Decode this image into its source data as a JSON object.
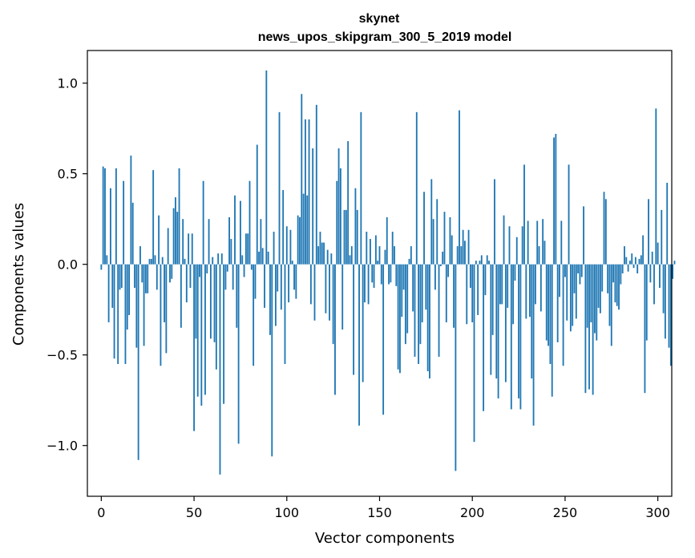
{
  "chart_data": {
    "type": "bar",
    "title": "skynet",
    "subtitle": "news_upos_skipgram_300_5_2019 model",
    "xlabel": "Vector components",
    "ylabel": "Components values",
    "xlim": [
      -7.5,
      307.5
    ],
    "ylim": [
      -1.28,
      1.18
    ],
    "xticks": [
      0,
      50,
      100,
      150,
      200,
      250,
      300
    ],
    "xtick_labels": [
      "0",
      "50",
      "100",
      "150",
      "200",
      "250",
      "300"
    ],
    "yticks": [
      -1.0,
      -0.5,
      0.0,
      0.5,
      1.0
    ],
    "ytick_labels": [
      "−1.0",
      "−0.5",
      "0.0",
      "0.5",
      "1.0"
    ],
    "bar_color": "#1f77b4",
    "grid": false,
    "values": [
      -0.03,
      0.54,
      0.53,
      0.05,
      -0.32,
      0.42,
      -0.24,
      -0.52,
      0.53,
      -0.55,
      -0.14,
      -0.13,
      0.46,
      -0.55,
      -0.36,
      -0.28,
      0.6,
      0.34,
      -0.13,
      -0.46,
      -1.08,
      0.1,
      -0.1,
      -0.45,
      -0.16,
      -0.16,
      0.03,
      0.03,
      0.52,
      0.05,
      -0.14,
      0.27,
      -0.56,
      0.04,
      -0.32,
      -0.49,
      0.2,
      -0.1,
      -0.08,
      0.31,
      0.37,
      0.29,
      0.53,
      -0.35,
      0.25,
      0.03,
      -0.21,
      0.17,
      -0.13,
      0.17,
      -0.92,
      -0.41,
      -0.73,
      -0.07,
      -0.78,
      0.46,
      -0.72,
      -0.05,
      0.25,
      -0.41,
      0.04,
      -0.43,
      -0.58,
      0.06,
      -1.16,
      0.06,
      -0.77,
      -0.14,
      -0.04,
      0.26,
      0.14,
      -0.14,
      0.38,
      -0.35,
      -0.99,
      0.35,
      0.05,
      -0.07,
      0.17,
      0.17,
      0.46,
      -0.03,
      -0.56,
      -0.19,
      0.66,
      0.07,
      0.25,
      0.09,
      -0.24,
      1.07,
      0.07,
      -0.39,
      -1.06,
      0.18,
      -0.34,
      -0.15,
      0.84,
      -0.25,
      0.41,
      -0.55,
      0.21,
      -0.21,
      0.19,
      0.02,
      -0.14,
      -0.19,
      0.27,
      0.26,
      0.94,
      0.39,
      0.8,
      0.38,
      0.8,
      -0.22,
      0.64,
      -0.31,
      0.88,
      0.1,
      0.18,
      0.12,
      0.12,
      -0.27,
      0.08,
      -0.31,
      0.06,
      -0.44,
      -0.72,
      0.46,
      0.64,
      0.53,
      -0.36,
      0.3,
      0.3,
      0.68,
      0.05,
      0.1,
      -0.61,
      0.42,
      0.3,
      -0.89,
      0.84,
      -0.65,
      -0.21,
      0.18,
      -0.22,
      0.14,
      -0.1,
      -0.13,
      0.16,
      0.02,
      0.1,
      -0.11,
      -0.83,
      0.08,
      0.26,
      -0.11,
      -0.1,
      0.18,
      0.1,
      -0.12,
      -0.58,
      -0.6,
      -0.29,
      -0.14,
      -0.44,
      -0.38,
      0.03,
      0.1,
      -0.26,
      -0.51,
      0.84,
      -0.55,
      -0.44,
      -0.32,
      0.4,
      -0.25,
      -0.59,
      -0.63,
      0.47,
      0.25,
      -0.14,
      0.36,
      -0.51,
      -0.01,
      0.07,
      0.29,
      -0.32,
      -0.07,
      0.26,
      0.16,
      -0.35,
      -1.14,
      0.1,
      0.85,
      0.1,
      0.19,
      0.13,
      -0.33,
      0.19,
      -0.13,
      -0.32,
      -0.98,
      0.02,
      -0.28,
      0.02,
      0.05,
      -0.81,
      -0.17,
      0.05,
      0.02,
      -0.61,
      -0.39,
      0.47,
      -0.63,
      -0.74,
      -0.22,
      -0.22,
      0.27,
      -0.65,
      -0.24,
      0.21,
      -0.8,
      -0.33,
      -0.09,
      0.15,
      -0.74,
      -0.8,
      0.21,
      0.55,
      -0.3,
      0.24,
      -0.29,
      -0.63,
      -0.89,
      -0.22,
      0.24,
      0.1,
      -0.26,
      0.25,
      0.13,
      -0.42,
      -0.45,
      -0.55,
      -0.73,
      0.7,
      0.72,
      -0.43,
      -0.18,
      0.24,
      -0.56,
      -0.07,
      -0.31,
      0.55,
      -0.37,
      -0.34,
      -0.16,
      -0.3,
      -0.05,
      -0.11,
      -0.07,
      0.32,
      -0.71,
      -0.35,
      -0.69,
      -0.32,
      -0.72,
      -0.38,
      -0.42,
      -0.24,
      -0.27,
      -0.15,
      0.4,
      0.36,
      -0.16,
      -0.34,
      -0.45,
      -0.1,
      -0.21,
      -0.23,
      -0.25,
      -0.11,
      -0.05,
      0.1,
      0.04,
      -0.04,
      0.02,
      0.06,
      -0.02,
      0.04,
      -0.05,
      0.03,
      0.05,
      0.16,
      -0.71,
      -0.42,
      0.36,
      -0.1,
      0.07,
      -0.22,
      0.86,
      0.12,
      -0.13,
      0.3,
      -0.27,
      -0.41,
      0.45,
      -0.46,
      -0.56,
      -0.08,
      0.02
    ]
  }
}
